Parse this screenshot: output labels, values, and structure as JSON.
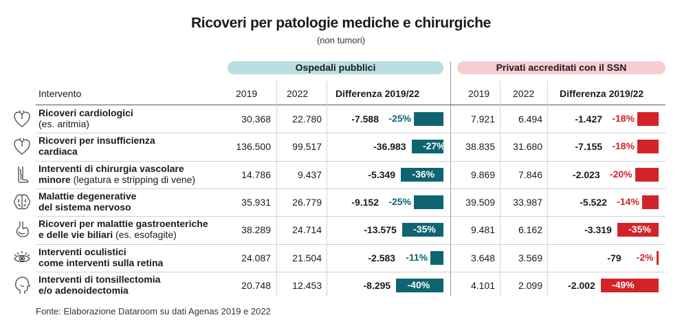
{
  "title": "Ricoveri per patologie mediche e chirurgiche",
  "subtitle": "(non tumori)",
  "groups": {
    "public": "Ospedali pubblici",
    "private": "Privati accreditati con il SSN"
  },
  "columns": {
    "intervention": "Intervento",
    "y2019": "2019",
    "y2022": "2022",
    "diff": "Differenza 2019/22"
  },
  "source": "Fonte: Elaborazione Dataroom su dati Agenas 2019 e 2022",
  "colors": {
    "public": "#0f6471",
    "private": "#d2232a",
    "public_band": "#b9dedf",
    "private_band": "#f7cdd0"
  },
  "rows": [
    {
      "icon": "heart-icon",
      "line1": "Ricoveri cardiologici",
      "line2_bold": "",
      "line2_normal": "(es. aritmia)",
      "pub_2019": "30.368",
      "pub_2022": "22.780",
      "pub_diff": "-7.588",
      "pub_pct_label": "-25%",
      "priv_2019": "7.921",
      "priv_2022": "6.494",
      "priv_diff": "-1.427",
      "priv_pct_label": "-18%"
    },
    {
      "icon": "heart-icon",
      "line1": "Ricoveri per insufficienza",
      "line2_bold": "cardiaca",
      "line2_normal": "",
      "pub_2019": "136.500",
      "pub_2022": "99.517",
      "pub_diff": "-36.983",
      "pub_pct_label": "-27%",
      "priv_2019": "38.835",
      "priv_2022": "31.680",
      "priv_diff": "-7.155",
      "priv_pct_label": "-18%"
    },
    {
      "icon": "leg-vein-icon",
      "line1": "Interventi di chirurgia vascolare",
      "line2_bold": "minore",
      "line2_normal": " (legatura e stripping di vene)",
      "pub_2019": "14.786",
      "pub_2022": "9.437",
      "pub_diff": "-5.349",
      "pub_pct_label": "-36%",
      "priv_2019": "9.869",
      "priv_2022": "7.846",
      "priv_diff": "-2.023",
      "priv_pct_label": "-20%"
    },
    {
      "icon": "brain-icon",
      "line1": "Malattie degenerative",
      "line2_bold": "del sistema nervoso",
      "line2_normal": "",
      "pub_2019": "35.931",
      "pub_2022": "26.779",
      "pub_diff": "-9.152",
      "pub_pct_label": "-25%",
      "priv_2019": "39.509",
      "priv_2022": "33.987",
      "priv_diff": "-5.522",
      "priv_pct_label": "-14%"
    },
    {
      "icon": "stomach-icon",
      "line1": "Ricoveri per malattie gastroenteriche",
      "line2_bold": "e delle vie biliari",
      "line2_normal": " (es. esofagite)",
      "pub_2019": "38.289",
      "pub_2022": "24.714",
      "pub_diff": "-13.575",
      "pub_pct_label": "-35%",
      "priv_2019": "9.481",
      "priv_2022": "6.162",
      "priv_diff": "-3.319",
      "priv_pct_label": "-35%"
    },
    {
      "icon": "eye-icon",
      "line1": "Interventi oculistici",
      "line2_bold": "come interventi sulla retina",
      "line2_normal": "",
      "pub_2019": "24.087",
      "pub_2022": "21.504",
      "pub_diff": "-2.583",
      "pub_pct_label": "-11%",
      "priv_2019": "3.648",
      "priv_2022": "3.569",
      "priv_diff": "-79",
      "priv_pct_label": "-2%"
    },
    {
      "icon": "head-profile-icon",
      "line1": "Interventi di tonsillectomia",
      "line2_bold": "e/o adenoidectomia",
      "line2_normal": "",
      "pub_2019": "20.748",
      "pub_2022": "12.453",
      "pub_diff": "-8.295",
      "pub_pct_label": "-40%",
      "priv_2019": "4.101",
      "priv_2022": "2.099",
      "priv_diff": "-2.002",
      "priv_pct_label": "-49%"
    }
  ],
  "chart_data": {
    "type": "bar",
    "title": "Ricoveri per patologie mediche e chirurgiche",
    "subtitle": "(non tumori)",
    "categories": [
      "Ricoveri cardiologici (es. aritmia)",
      "Ricoveri per insufficienza cardiaca",
      "Interventi di chirurgia vascolare minore (legatura e stripping di vene)",
      "Malattie degenerative del sistema nervoso",
      "Ricoveri per malattie gastroenteriche e delle vie biliari (es. esofagite)",
      "Interventi oculistici come interventi sulla retina",
      "Interventi di tonsillectomia e/o adenoidectomia"
    ],
    "series": [
      {
        "name": "Ospedali pubblici",
        "values": [
          -25,
          -27,
          -36,
          -25,
          -35,
          -11,
          -40
        ]
      },
      {
        "name": "Privati accreditati con il SSN",
        "values": [
          -18,
          -18,
          -20,
          -14,
          -35,
          -2,
          -49
        ]
      }
    ],
    "ylim": [
      -50,
      0
    ]
  }
}
